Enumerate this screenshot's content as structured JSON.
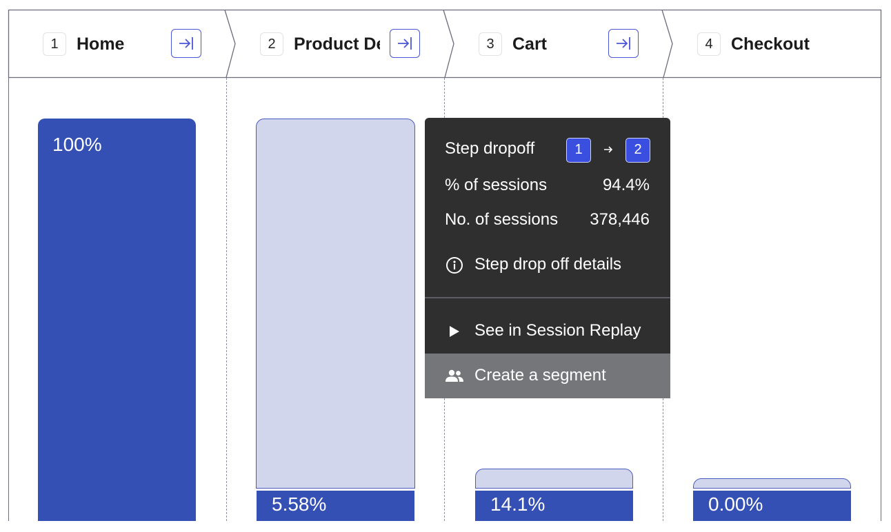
{
  "steps": [
    {
      "number": "1",
      "name": "Home"
    },
    {
      "number": "2",
      "name": "Product Details"
    },
    {
      "number": "3",
      "name": "Cart"
    },
    {
      "number": "4",
      "name": "Checkout"
    }
  ],
  "bars": {
    "home_pct": "100%",
    "product_pct": "5.58%",
    "cart_pct": "14.1%",
    "checkout_pct": "0.00%"
  },
  "tooltip": {
    "title": "Step dropoff",
    "from_step": "1",
    "to_step": "2",
    "pct_label": "% of sessions",
    "pct_value": "94.4%",
    "count_label": "No. of sessions",
    "count_value": "378,446",
    "details_label": "Step drop off details",
    "replay_label": "See in Session Replay",
    "segment_label": "Create a segment"
  },
  "icons": {
    "step_button": "jump-to-end-icon",
    "details": "info-icon",
    "replay": "play-icon",
    "segment": "people-icon",
    "arrow": "arrow-right-icon"
  },
  "colors": {
    "accent": "#3550b5",
    "ghost": "#d1d6ec",
    "tooltip_bg": "#2f2f2f",
    "badge": "#3a4ee0"
  }
}
